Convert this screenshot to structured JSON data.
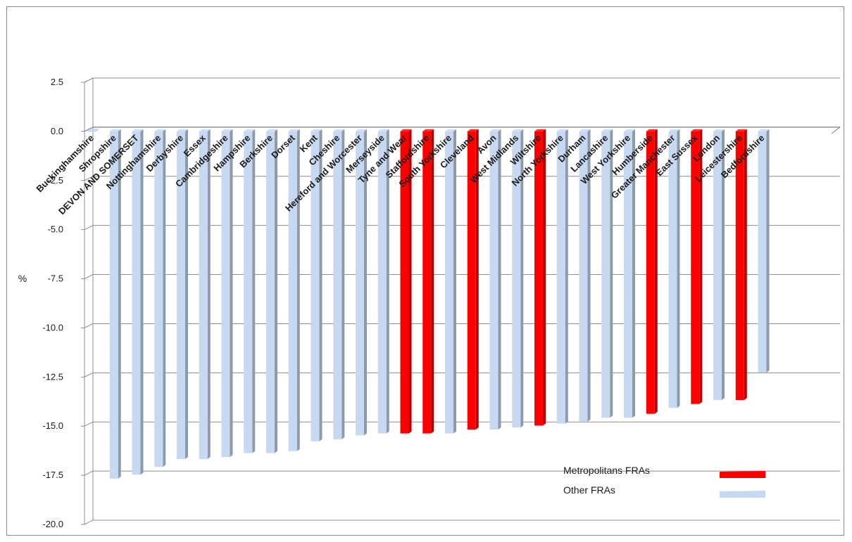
{
  "chart_data": {
    "type": "bar",
    "title": "",
    "xlabel": "",
    "ylabel": "%",
    "ylim": [
      -20,
      2.5
    ],
    "ytick_step": 2.5,
    "grid": true,
    "legend_position": "bottom-right",
    "categories": [
      "Buckinghamshire",
      "Shropshire",
      "DEVON AND SOMERSET",
      "Nottinghamshire",
      "Derbyshire",
      "Essex",
      "Cambridgeshire",
      "Hampshire",
      "Berkshire",
      "Dorset",
      "Kent",
      "Cheshire",
      "Hereford and Worcester",
      "Merseyside",
      "Tyne and Wear",
      "Staffordshire",
      "South Yorkshire",
      "Cleveland",
      "Avon",
      "West Midlands",
      "Wiltshire",
      "North Yorkshire",
      "Durham",
      "Lancashire",
      "West Yorkshire",
      "Humberside",
      "Greater Manchester",
      "East Sussex",
      "London",
      "Leicestershire",
      "Bedfordshire"
    ],
    "values": [
      0.1,
      -17.6,
      -17.4,
      -17.0,
      -16.6,
      -16.6,
      -16.5,
      -16.3,
      -16.3,
      -16.2,
      -15.7,
      -15.6,
      -15.4,
      -15.3,
      -15.3,
      -15.3,
      -15.3,
      -15.1,
      -15.1,
      -15.0,
      -14.9,
      -14.8,
      -14.7,
      -14.5,
      -14.5,
      -14.3,
      -14.0,
      -13.8,
      -13.6,
      -13.6,
      -12.2
    ],
    "group": [
      "Other FRAs",
      "Other FRAs",
      "Other FRAs",
      "Other FRAs",
      "Other FRAs",
      "Other FRAs",
      "Other FRAs",
      "Other FRAs",
      "Other FRAs",
      "Other FRAs",
      "Other FRAs",
      "Other FRAs",
      "Other FRAs",
      "Other FRAs",
      "Metropolitans FRAs",
      "Metropolitans FRAs",
      "Other FRAs",
      "Metropolitans FRAs",
      "Other FRAs",
      "Other FRAs",
      "Metropolitans FRAs",
      "Other FRAs",
      "Other FRAs",
      "Other FRAs",
      "Other FRAs",
      "Metropolitans FRAs",
      "Other FRAs",
      "Metropolitans FRAs",
      "Other FRAs",
      "Metropolitans FRAs",
      "Other FRAs"
    ],
    "legend": [
      {
        "name": "Metropolitans FRAs",
        "color": "#ff0000"
      },
      {
        "name": "Other FRAs",
        "color": "#c6d9f1"
      }
    ]
  }
}
